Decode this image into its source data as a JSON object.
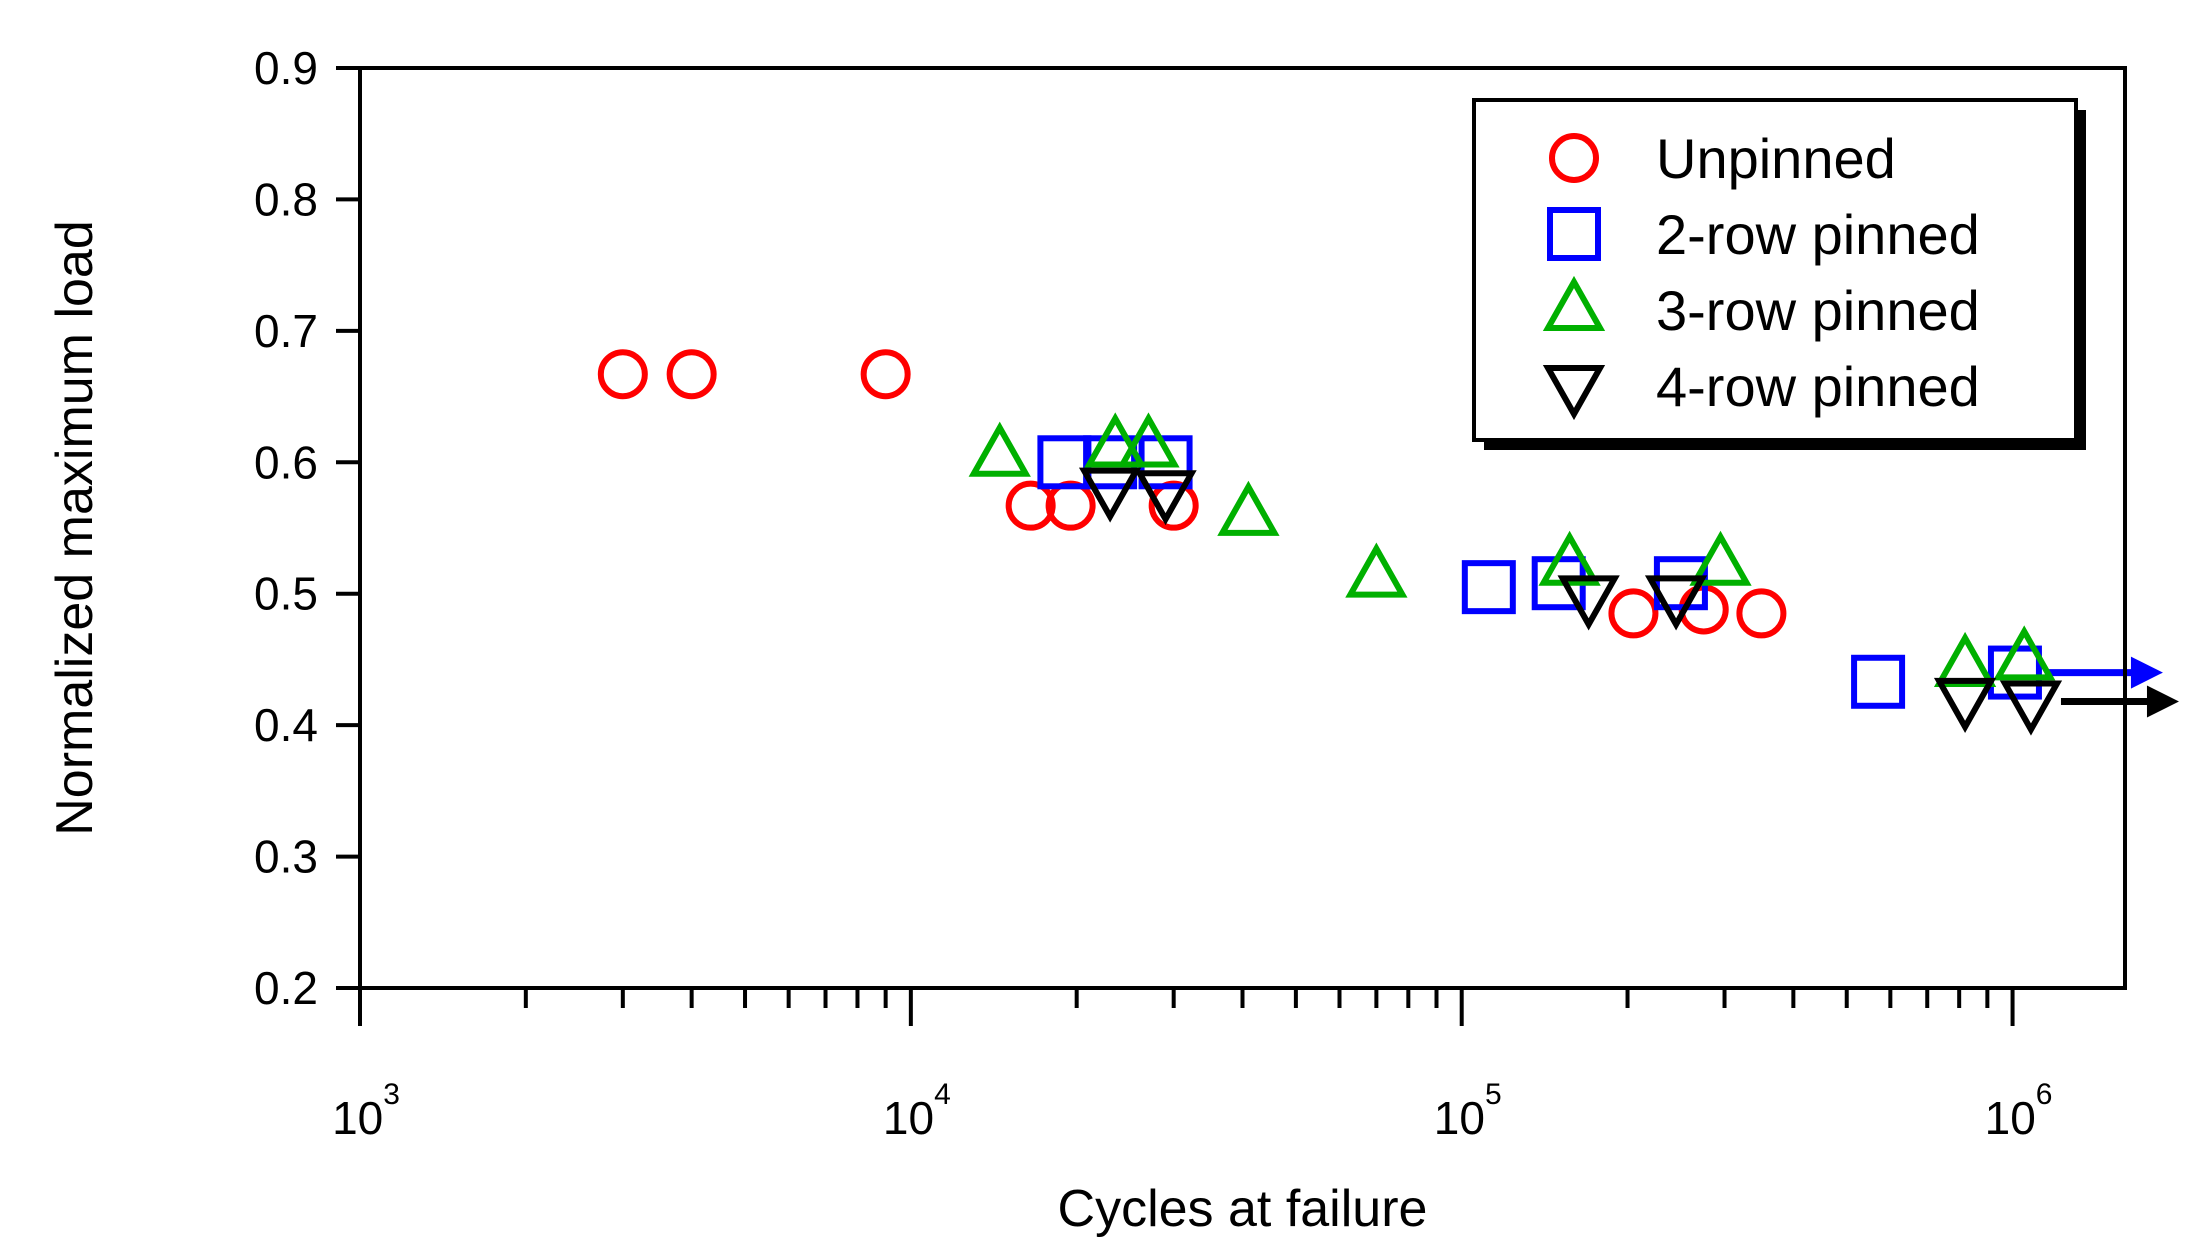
{
  "chart_data": {
    "type": "scatter",
    "title": "",
    "xlabel": "Cycles at failure",
    "ylabel": "Normalized maximum load",
    "x_scale": "log",
    "xlim": [
      1000,
      1600000
    ],
    "ylim": [
      0.2,
      0.9
    ],
    "x_ticks": [
      {
        "base": "10",
        "exp": "3",
        "value": 1000
      },
      {
        "base": "10",
        "exp": "4",
        "value": 10000
      },
      {
        "base": "10",
        "exp": "5",
        "value": 100000
      },
      {
        "base": "10",
        "exp": "6",
        "value": 1000000
      }
    ],
    "y_ticks": [
      "0.2",
      "0.3",
      "0.4",
      "0.5",
      "0.6",
      "0.7",
      "0.8",
      "0.9"
    ],
    "grid": false,
    "legend_position": "top-right",
    "series": [
      {
        "name": "Unpinned",
        "marker": "circle",
        "color": "#ff0000",
        "points": [
          {
            "x": 3000,
            "y": 0.667
          },
          {
            "x": 4000,
            "y": 0.667
          },
          {
            "x": 9000,
            "y": 0.667
          },
          {
            "x": 16500,
            "y": 0.567
          },
          {
            "x": 19500,
            "y": 0.567
          },
          {
            "x": 30000,
            "y": 0.567
          },
          {
            "x": 205000,
            "y": 0.485
          },
          {
            "x": 275000,
            "y": 0.488
          },
          {
            "x": 350000,
            "y": 0.485
          }
        ]
      },
      {
        "name": "2-row pinned",
        "marker": "square",
        "color": "#0000ff",
        "points": [
          {
            "x": 19000,
            "y": 0.6
          },
          {
            "x": 23000,
            "y": 0.6
          },
          {
            "x": 29000,
            "y": 0.6
          },
          {
            "x": 112000,
            "y": 0.505
          },
          {
            "x": 150000,
            "y": 0.508
          },
          {
            "x": 250000,
            "y": 0.508
          },
          {
            "x": 570000,
            "y": 0.433
          },
          {
            "x": 1010000,
            "y": 0.44,
            "runout": true
          }
        ]
      },
      {
        "name": "3-row pinned",
        "marker": "triangle-up",
        "color": "#00b000",
        "points": [
          {
            "x": 14500,
            "y": 0.605
          },
          {
            "x": 23500,
            "y": 0.612
          },
          {
            "x": 27000,
            "y": 0.612
          },
          {
            "x": 41000,
            "y": 0.56
          },
          {
            "x": 70000,
            "y": 0.513
          },
          {
            "x": 157000,
            "y": 0.522
          },
          {
            "x": 295000,
            "y": 0.522
          },
          {
            "x": 820000,
            "y": 0.445
          },
          {
            "x": 1050000,
            "y": 0.45
          }
        ]
      },
      {
        "name": "4-row pinned",
        "marker": "triangle-down",
        "color": "#000000",
        "points": [
          {
            "x": 23000,
            "y": 0.58
          },
          {
            "x": 29000,
            "y": 0.578
          },
          {
            "x": 170000,
            "y": 0.498
          },
          {
            "x": 245000,
            "y": 0.498
          },
          {
            "x": 820000,
            "y": 0.42
          },
          {
            "x": 1080000,
            "y": 0.418,
            "runout": true
          }
        ]
      }
    ]
  }
}
